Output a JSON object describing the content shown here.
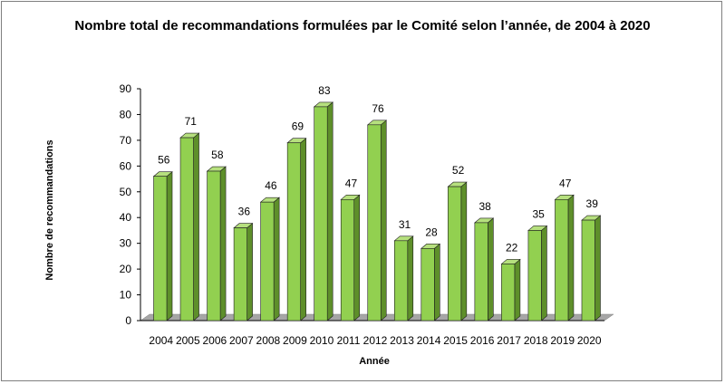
{
  "chart_data": {
    "type": "bar",
    "title": "Nombre total de recommandations formulées par le Comité selon l’année, de 2004 à 2020",
    "xlabel": "Année",
    "ylabel": "Nombre de recommandations",
    "categories": [
      "2004",
      "2005",
      "2006",
      "2007",
      "2008",
      "2009",
      "2010",
      "2011",
      "2012",
      "2013",
      "2014",
      "2015",
      "2016",
      "2017",
      "2018",
      "2019",
      "2020"
    ],
    "values": [
      56,
      71,
      58,
      36,
      46,
      69,
      83,
      47,
      76,
      31,
      28,
      52,
      38,
      22,
      35,
      47,
      39
    ],
    "ylim": [
      0,
      90
    ],
    "yticks": [
      0,
      10,
      20,
      30,
      40,
      50,
      60,
      70,
      80,
      90
    ],
    "grid": false,
    "legend": "none",
    "colors": {
      "bar_front": "#92d050",
      "bar_side": "#5e8f2a",
      "bar_top": "#b6e07e",
      "bar_stroke": "#1f1f1f",
      "floor": "#a6a6a6",
      "axis": "#000000"
    }
  }
}
